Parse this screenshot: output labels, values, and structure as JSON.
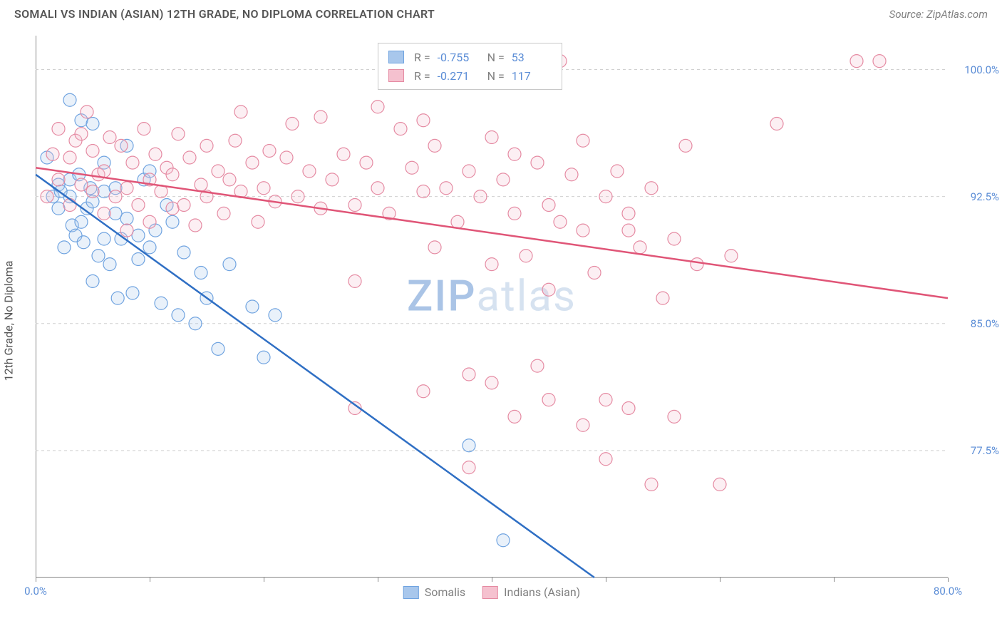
{
  "title": "SOMALI VS INDIAN (ASIAN) 12TH GRADE, NO DIPLOMA CORRELATION CHART",
  "source": "Source: ZipAtlas.com",
  "watermark_zip": "ZIP",
  "watermark_atlas": "atlas",
  "y_axis_label": "12th Grade, No Diploma",
  "chart": {
    "type": "scatter",
    "xlim": [
      0,
      80
    ],
    "ylim": [
      70,
      102
    ],
    "x_ticks": [
      0,
      10,
      20,
      30,
      40,
      50,
      60,
      70,
      80
    ],
    "x_tick_labels": {
      "0": "0.0%",
      "80": "80.0%"
    },
    "y_ticks": [
      77.5,
      85.0,
      92.5,
      100.0
    ],
    "y_tick_labels": [
      "77.5%",
      "85.0%",
      "92.5%",
      "100.0%"
    ],
    "grid_color": "#d0d0d0",
    "axis_color": "#888888",
    "background_color": "#ffffff",
    "marker_radius": 9,
    "marker_fill_opacity": 0.25,
    "line_width": 2.5,
    "series": [
      {
        "name": "Somalis",
        "color_stroke": "#6fa3e0",
        "color_fill": "#a8c7ec",
        "trend_color": "#2f6fc4",
        "R": "-0.755",
        "N": "53",
        "trend_line": {
          "x1": 0,
          "y1": 93.8,
          "x2": 49,
          "y2": 70
        },
        "points": [
          [
            1,
            94.8
          ],
          [
            1.5,
            92.5
          ],
          [
            2,
            93.2
          ],
          [
            2,
            91.8
          ],
          [
            2.2,
            92.8
          ],
          [
            3,
            98.2
          ],
          [
            3,
            92.5
          ],
          [
            3.2,
            90.8
          ],
          [
            3.5,
            90.2
          ],
          [
            4,
            97.0
          ],
          [
            4,
            91.0
          ],
          [
            4.2,
            89.8
          ],
          [
            4.5,
            91.8
          ],
          [
            5,
            96.8
          ],
          [
            5,
            92.2
          ],
          [
            5,
            87.5
          ],
          [
            5.5,
            89.0
          ],
          [
            6,
            94.5
          ],
          [
            6,
            92.8
          ],
          [
            6.5,
            88.5
          ],
          [
            7,
            91.5
          ],
          [
            7,
            93.0
          ],
          [
            7.5,
            90.0
          ],
          [
            8,
            91.2
          ],
          [
            8,
            95.5
          ],
          [
            8.5,
            86.8
          ],
          [
            9,
            88.8
          ],
          [
            9.5,
            93.5
          ],
          [
            10,
            94.0
          ],
          [
            10,
            89.5
          ],
          [
            10.5,
            90.5
          ],
          [
            11,
            86.2
          ],
          [
            11.5,
            92.0
          ],
          [
            12,
            91.0
          ],
          [
            12.5,
            85.5
          ],
          [
            13,
            89.2
          ],
          [
            14,
            85.0
          ],
          [
            14.5,
            88.0
          ],
          [
            15,
            86.5
          ],
          [
            16,
            83.5
          ],
          [
            17,
            88.5
          ],
          [
            19,
            86.0
          ],
          [
            20,
            83.0
          ],
          [
            21,
            85.5
          ],
          [
            9,
            90.2
          ],
          [
            6,
            90.0
          ],
          [
            3,
            93.5
          ],
          [
            2.5,
            89.5
          ],
          [
            38,
            77.8
          ],
          [
            41,
            72.2
          ],
          [
            3.8,
            93.8
          ],
          [
            4.8,
            93.0
          ],
          [
            7.2,
            86.5
          ]
        ]
      },
      {
        "name": "Indians (Asian)",
        "color_stroke": "#e58aa2",
        "color_fill": "#f5c1cf",
        "trend_color": "#e05577",
        "R": "-0.271",
        "N": "117",
        "trend_line": {
          "x1": 0,
          "y1": 94.2,
          "x2": 80,
          "y2": 86.5
        },
        "points": [
          [
            1,
            92.5
          ],
          [
            1.5,
            95.0
          ],
          [
            2,
            93.5
          ],
          [
            2,
            96.5
          ],
          [
            3,
            94.8
          ],
          [
            3,
            92.0
          ],
          [
            3.5,
            95.8
          ],
          [
            4,
            93.2
          ],
          [
            4,
            96.2
          ],
          [
            4.5,
            97.5
          ],
          [
            5,
            92.8
          ],
          [
            5,
            95.2
          ],
          [
            5.5,
            93.8
          ],
          [
            6,
            94.0
          ],
          [
            6,
            91.5
          ],
          [
            6.5,
            96.0
          ],
          [
            7,
            92.5
          ],
          [
            7.5,
            95.5
          ],
          [
            8,
            93.0
          ],
          [
            8,
            90.5
          ],
          [
            8.5,
            94.5
          ],
          [
            9,
            92.0
          ],
          [
            9.5,
            96.5
          ],
          [
            10,
            93.5
          ],
          [
            10,
            91.0
          ],
          [
            10.5,
            95.0
          ],
          [
            11,
            92.8
          ],
          [
            11.5,
            94.2
          ],
          [
            12,
            91.8
          ],
          [
            12,
            93.8
          ],
          [
            12.5,
            96.2
          ],
          [
            13,
            92.0
          ],
          [
            13.5,
            94.8
          ],
          [
            14,
            90.8
          ],
          [
            14.5,
            93.2
          ],
          [
            15,
            95.5
          ],
          [
            15,
            92.5
          ],
          [
            16,
            94.0
          ],
          [
            16.5,
            91.5
          ],
          [
            17,
            93.5
          ],
          [
            17.5,
            95.8
          ],
          [
            18,
            92.8
          ],
          [
            18,
            97.5
          ],
          [
            19,
            94.5
          ],
          [
            19.5,
            91.0
          ],
          [
            20,
            93.0
          ],
          [
            20.5,
            95.2
          ],
          [
            21,
            92.2
          ],
          [
            22,
            94.8
          ],
          [
            22.5,
            96.8
          ],
          [
            23,
            92.5
          ],
          [
            24,
            94.0
          ],
          [
            25,
            91.8
          ],
          [
            25,
            97.2
          ],
          [
            26,
            93.5
          ],
          [
            27,
            95.0
          ],
          [
            28,
            92.0
          ],
          [
            28,
            87.5
          ],
          [
            29,
            94.5
          ],
          [
            30,
            97.8
          ],
          [
            30,
            93.0
          ],
          [
            31,
            100.5
          ],
          [
            31,
            91.5
          ],
          [
            32,
            96.5
          ],
          [
            33,
            94.2
          ],
          [
            34,
            92.8
          ],
          [
            34,
            97.0
          ],
          [
            35,
            89.5
          ],
          [
            35,
            95.5
          ],
          [
            36,
            93.0
          ],
          [
            37,
            91.0
          ],
          [
            38,
            94.0
          ],
          [
            39,
            92.5
          ],
          [
            40,
            96.0
          ],
          [
            40,
            88.5
          ],
          [
            41,
            93.5
          ],
          [
            42,
            91.5
          ],
          [
            42,
            95.0
          ],
          [
            43,
            89.0
          ],
          [
            44,
            94.5
          ],
          [
            45,
            92.0
          ],
          [
            45,
            87.0
          ],
          [
            46,
            100.5
          ],
          [
            46,
            91.0
          ],
          [
            47,
            93.8
          ],
          [
            48,
            90.5
          ],
          [
            48,
            95.8
          ],
          [
            49,
            88.0
          ],
          [
            50,
            92.5
          ],
          [
            50,
            80.5
          ],
          [
            51,
            94.0
          ],
          [
            52,
            91.5
          ],
          [
            53,
            89.5
          ],
          [
            54,
            93.0
          ],
          [
            55,
            86.5
          ],
          [
            56,
            90.0
          ],
          [
            57,
            95.5
          ],
          [
            58,
            88.5
          ],
          [
            34,
            81.0
          ],
          [
            28,
            80.0
          ],
          [
            38,
            76.5
          ],
          [
            42,
            79.5
          ],
          [
            44,
            82.5
          ],
          [
            45,
            80.5
          ],
          [
            48,
            79.0
          ],
          [
            50,
            77.0
          ],
          [
            52,
            80.0
          ],
          [
            54,
            75.5
          ],
          [
            56,
            79.5
          ],
          [
            38,
            82.0
          ],
          [
            40,
            81.5
          ],
          [
            61,
            89.0
          ],
          [
            65,
            96.8
          ],
          [
            72,
            100.5
          ],
          [
            74,
            100.5
          ],
          [
            60,
            75.5
          ],
          [
            52,
            90.5
          ]
        ]
      }
    ]
  },
  "legend_bottom": [
    {
      "label": "Somalis",
      "stroke": "#6fa3e0",
      "fill": "#a8c7ec"
    },
    {
      "label": "Indians (Asian)",
      "stroke": "#e58aa2",
      "fill": "#f5c1cf"
    }
  ]
}
